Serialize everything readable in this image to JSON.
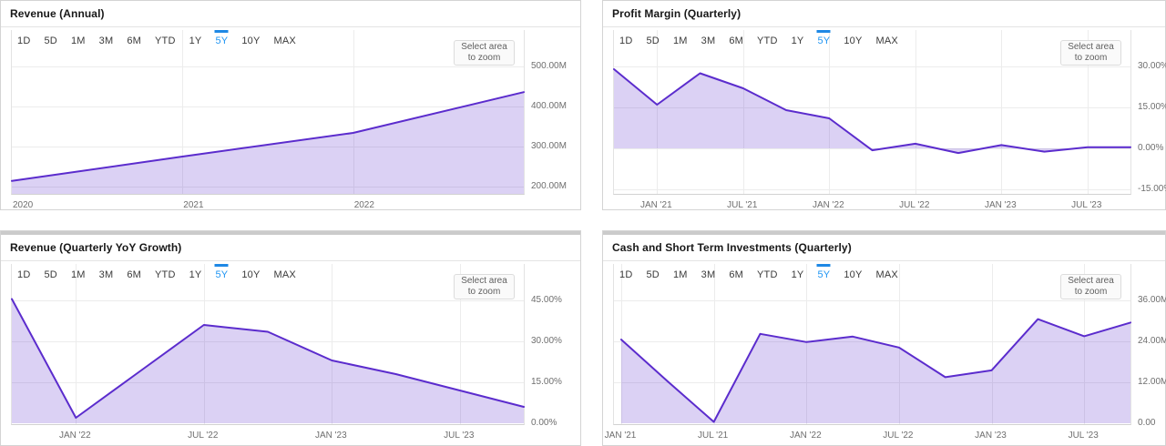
{
  "controls": {
    "range_buttons": [
      "1D",
      "5D",
      "1M",
      "3M",
      "6M",
      "YTD",
      "1Y",
      "5Y",
      "10Y",
      "MAX"
    ],
    "active_range": "5Y",
    "zoom_button_line1": "Select area",
    "zoom_button_line2": "to zoom"
  },
  "colors": {
    "series_line": "#5b2ccd",
    "series_fill_rgba": "rgba(92,45,204,0.22)",
    "active_range_text": "#2196f3",
    "active_range_bar": "#1e88e5",
    "panel_border": "#d4d4d4",
    "grid_line": "#ececec",
    "axis_text": "#6e6e6e"
  },
  "panels": [
    {
      "id": "revenue-annual",
      "title": "Revenue (Annual)",
      "chart_data": {
        "type": "area",
        "title": "Revenue (Annual)",
        "categories": [
          "2020",
          "2021",
          "2022",
          "2023"
        ],
        "values": [
          214,
          275,
          334,
          436
        ],
        "unit": "M",
        "y_ticks": [
          500,
          400,
          300,
          200
        ],
        "y_tick_labels": [
          "500.00M",
          "400.00M",
          "300.00M",
          "200.00M"
        ],
        "x_tick_labels": [
          "2020",
          "2021",
          "2022"
        ],
        "legend": "none",
        "grid": "on"
      }
    },
    {
      "id": "profit-margin-quarterly",
      "title": "Profit Margin (Quarterly)",
      "chart_data": {
        "type": "area",
        "title": "Profit Margin (Quarterly)",
        "categories": [
          "Oct '20",
          "Jan '21",
          "Apr '21",
          "Jul '21",
          "Oct '21",
          "Jan '22",
          "Apr '22",
          "Jul '22",
          "Oct '22",
          "Jan '23",
          "Apr '23",
          "Jul '23",
          "Oct '23"
        ],
        "values": [
          29,
          16,
          27.5,
          22,
          14,
          11,
          -0.7,
          1.7,
          -1.7,
          1.2,
          -1.2,
          0.4,
          0.4
        ],
        "unit": "%",
        "baseline": 0,
        "y_ticks": [
          30,
          15,
          0,
          -15
        ],
        "y_tick_labels": [
          "30.00%",
          "15.00%",
          "0.00%",
          "-15.00%"
        ],
        "x_tick_labels": [
          "JAN '21",
          "JUL '21",
          "JAN '22",
          "JUL '22",
          "JAN '23",
          "JUL '23"
        ],
        "legend": "none",
        "grid": "on"
      }
    },
    {
      "id": "revenue-quarterly-yoy-growth",
      "title": "Revenue (Quarterly YoY Growth)",
      "chart_data": {
        "type": "area",
        "title": "Revenue (Quarterly YoY Growth)",
        "categories": [
          "Oct '21",
          "Jan '22",
          "Apr '22",
          "Jul '22",
          "Oct '22",
          "Jan '23",
          "Apr '23",
          "Jul '23",
          "Oct '23"
        ],
        "values": [
          45.5,
          2,
          19,
          36,
          33.5,
          23,
          18,
          12,
          6
        ],
        "unit": "%",
        "baseline": 0,
        "y_ticks": [
          45,
          30,
          15,
          0
        ],
        "y_tick_labels": [
          "45.00%",
          "30.00%",
          "15.00%",
          "0.00%"
        ],
        "x_tick_labels": [
          "JAN '22",
          "JUL '22",
          "JAN '23",
          "JUL '23"
        ],
        "legend": "none",
        "grid": "on"
      }
    },
    {
      "id": "cash-and-short-term-investments-quarterly",
      "title": "Cash and Short Term Investments (Quarterly)",
      "chart_data": {
        "type": "area",
        "title": "Cash and Short Term Investments (Quarterly)",
        "categories": [
          "Jan '21",
          "Apr '21",
          "Jul '21",
          "Oct '21",
          "Jan '22",
          "Apr '22",
          "Jul '22",
          "Oct '22",
          "Jan '23",
          "Apr '23",
          "Jul '23",
          "Oct '23"
        ],
        "values": [
          24.5,
          12.3,
          0.4,
          26.2,
          23.8,
          25.4,
          22.2,
          13.5,
          15.5,
          30.5,
          25.5,
          29.5
        ],
        "unit": "M",
        "baseline": 0,
        "y_ticks": [
          36,
          24,
          12,
          0
        ],
        "y_tick_labels": [
          "36.00M",
          "24.00M",
          "12.00M",
          "0.00"
        ],
        "x_tick_labels": [
          "JAN '21",
          "JUL '21",
          "JAN '22",
          "JUL '22",
          "JAN '23",
          "JUL '23"
        ],
        "legend": "none",
        "grid": "on"
      }
    }
  ]
}
